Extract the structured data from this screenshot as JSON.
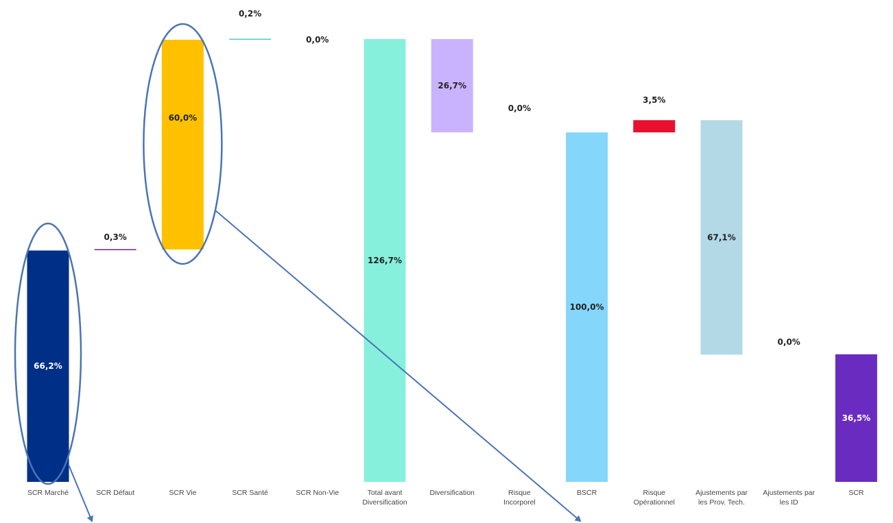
{
  "chart_data": {
    "type": "bar",
    "subtype": "waterfall",
    "categories": [
      [
        "SCR Marché"
      ],
      [
        "SCR Défaut"
      ],
      [
        "SCR Vie"
      ],
      [
        "SCR Santé"
      ],
      [
        "SCR Non-Vie"
      ],
      [
        "Total avant",
        "Diversification"
      ],
      [
        "Diversification"
      ],
      [
        "Risque",
        "Incorporel"
      ],
      [
        "BSCR"
      ],
      [
        "Risque",
        "Opérationnel"
      ],
      [
        "Ajustements par",
        "les Prov. Tech."
      ],
      [
        "Ajustements par",
        "les ID"
      ],
      [
        "SCR"
      ]
    ],
    "bars": [
      {
        "base": 0,
        "top": 66.2,
        "label": "66,2%",
        "color": "#002f87",
        "label_color": "#ffffff",
        "label_pos": "inside"
      },
      {
        "base": 66.2,
        "top": 66.5,
        "label": "0,3%",
        "color": "#7030a0",
        "label_color": "#222222",
        "label_pos": "above"
      },
      {
        "base": 66.5,
        "top": 126.5,
        "label": "60,0%",
        "color": "#ffc000",
        "label_color": "#222222",
        "label_pos": "inside_top"
      },
      {
        "base": 126.5,
        "top": 126.7,
        "label": "0,2%",
        "color": "#4ecdc4",
        "label_color": "#222222",
        "label_pos": "above"
      },
      {
        "base": 126.7,
        "top": 126.7,
        "label": "0,0%",
        "color": "#ffffff",
        "label_color": "#222222",
        "label_pos": "right_above"
      },
      {
        "base": 0,
        "top": 126.7,
        "label": "126,7%",
        "color": "#86f0dd",
        "label_color": "#222222",
        "label_pos": "inside"
      },
      {
        "base": 100.0,
        "top": 126.7,
        "label": "26,7%",
        "color": "#c9b3ff",
        "label_color": "#222222",
        "label_pos": "inside"
      },
      {
        "base": 100.0,
        "top": 100.0,
        "label": "0,0%",
        "color": "#ffffff",
        "label_color": "#222222",
        "label_pos": "above_far"
      },
      {
        "base": 0,
        "top": 100.0,
        "label": "100,0%",
        "color": "#84d6fa",
        "label_color": "#222222",
        "label_pos": "inside"
      },
      {
        "base": 100.0,
        "top": 103.5,
        "label": "3,5%",
        "color": "#e8102e",
        "label_color": "#222222",
        "label_pos": "above"
      },
      {
        "base": 36.4,
        "top": 103.5,
        "label": "67,1%",
        "color": "#b3d9e6",
        "label_color": "#222222",
        "label_pos": "inside"
      },
      {
        "base": 36.5,
        "top": 36.5,
        "label": "0,0%",
        "color": "#ffffff",
        "label_color": "#222222",
        "label_pos": "above"
      },
      {
        "base": 0,
        "top": 36.5,
        "label": "36,5%",
        "color": "#6a2cc0",
        "label_color": "#ffffff",
        "label_pos": "inside"
      }
    ],
    "ylim": [
      0,
      126.7
    ],
    "highlights": [
      {
        "category_index": 0,
        "shape": "ellipse"
      },
      {
        "category_index": 2,
        "shape": "ellipse"
      }
    ],
    "arrow_color": "#4a74b4",
    "grid": false,
    "legend": "none"
  }
}
